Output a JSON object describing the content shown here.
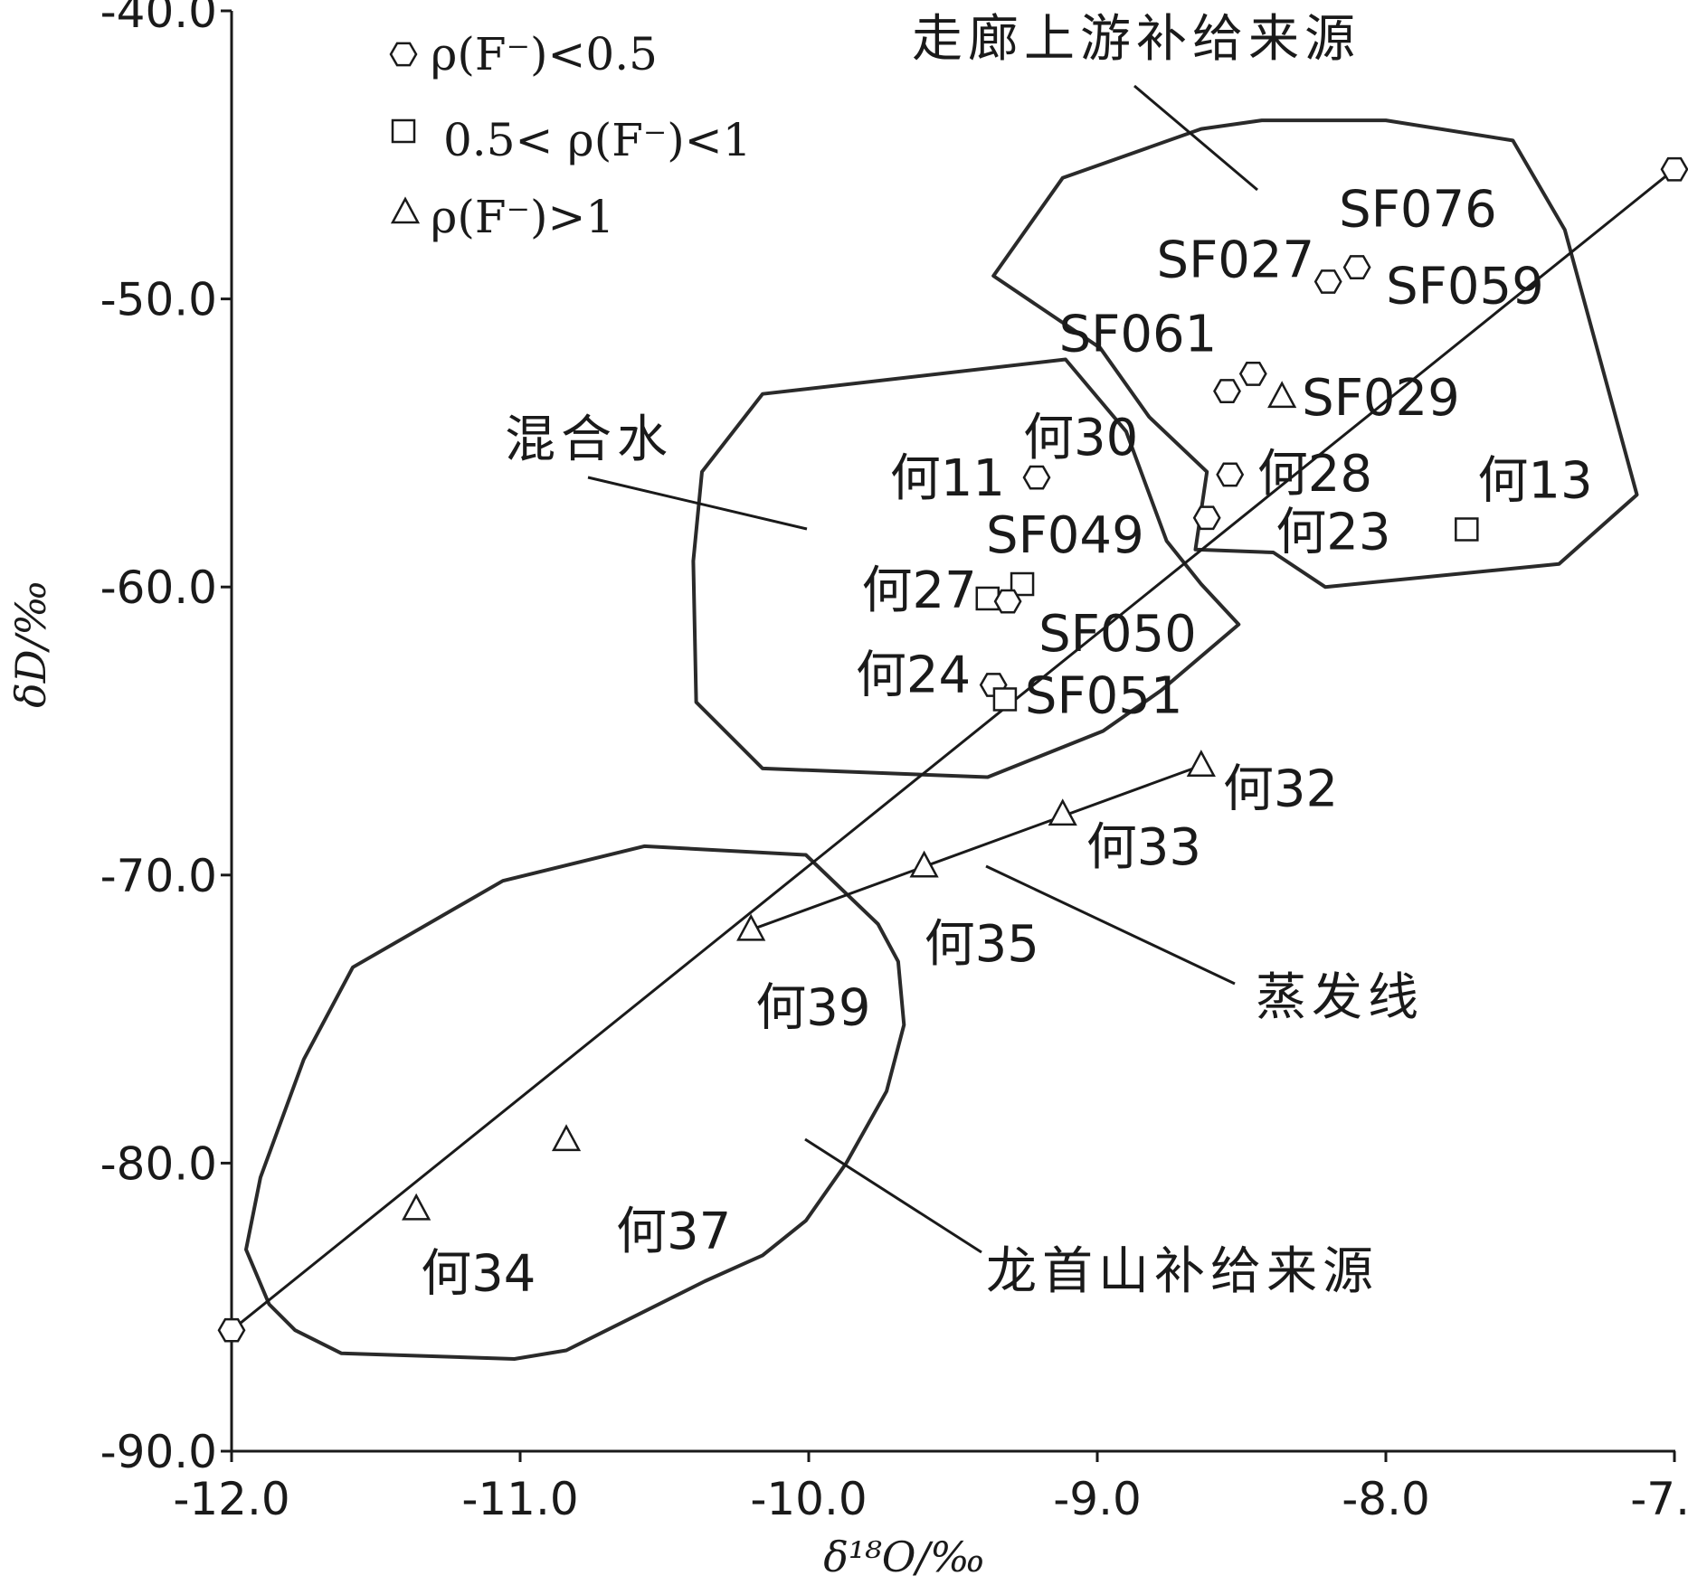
{
  "chart_data": {
    "type": "scatter",
    "title": "",
    "xlabel": "δ¹⁸O/‰",
    "ylabel": "δD/‰",
    "xlim": [
      -12.0,
      -7.0
    ],
    "ylim": [
      -90.0,
      -40.0
    ],
    "x_ticks": [
      "-12.0",
      "-11.0",
      "-10.0",
      "-9.0",
      "-8.0",
      "-7.0"
    ],
    "y_ticks": [
      "-40.0",
      "-50.0",
      "-60.0",
      "-70.0",
      "-80.0",
      "-90.0"
    ],
    "grid": false,
    "legend_position": "top-left",
    "legend": [
      {
        "marker": "hexagon",
        "label": "ρ(F⁻)<0.5"
      },
      {
        "marker": "square",
        "label": "0.5< ρ(F⁻)<1"
      },
      {
        "marker": "triangle",
        "label": "ρ(F⁻)>1"
      }
    ],
    "points": [
      {
        "x": -8.1,
        "y": -48.9,
        "marker": "hexagon",
        "label": "SF076"
      },
      {
        "x": -8.2,
        "y": -49.4,
        "marker": "hexagon",
        "label": "SF027"
      },
      {
        "x": -8.46,
        "y": -52.6,
        "marker": "hexagon",
        "label": "SF061"
      },
      {
        "x": -8.55,
        "y": -53.2,
        "marker": "hexagon",
        "label": ""
      },
      {
        "x": -8.36,
        "y": -53.4,
        "marker": "triangle",
        "label": "SF029"
      },
      {
        "x": -8.54,
        "y": -56.1,
        "marker": "hexagon",
        "label": "何28"
      },
      {
        "x": -8.62,
        "y": -57.6,
        "marker": "hexagon",
        "label": "何23"
      },
      {
        "x": -7.72,
        "y": -58.0,
        "marker": "square",
        "label": "何13"
      },
      {
        "x": -9.21,
        "y": -56.2,
        "marker": "hexagon",
        "label": "何30"
      },
      {
        "x": -9.26,
        "y": -59.9,
        "marker": "square",
        "label": "SF049"
      },
      {
        "x": -9.38,
        "y": -60.4,
        "marker": "square",
        "label": "何27"
      },
      {
        "x": -9.31,
        "y": -60.5,
        "marker": "hexagon",
        "label": "SF050"
      },
      {
        "x": -9.36,
        "y": -63.4,
        "marker": "hexagon",
        "label": "何24"
      },
      {
        "x": -9.32,
        "y": -63.9,
        "marker": "square",
        "label": "SF051"
      },
      {
        "x": -8.64,
        "y": -66.2,
        "marker": "triangle",
        "label": "何32"
      },
      {
        "x": -9.12,
        "y": -67.9,
        "marker": "triangle",
        "label": "何33"
      },
      {
        "x": -9.6,
        "y": -69.7,
        "marker": "triangle",
        "label": "何35"
      },
      {
        "x": -10.2,
        "y": -71.9,
        "marker": "triangle",
        "label": "何39"
      },
      {
        "x": -10.84,
        "y": -79.2,
        "marker": "triangle",
        "label": "何37"
      },
      {
        "x": -11.36,
        "y": -81.6,
        "marker": "triangle",
        "label": "何34"
      },
      {
        "x": -7.0,
        "y": -45.5,
        "marker": "hexagon",
        "label": ""
      },
      {
        "x": -12.0,
        "y": -85.8,
        "marker": "hexagon",
        "label": ""
      }
    ],
    "lines": [
      {
        "points": [
          [
            -12.0,
            -85.8
          ],
          [
            -7.0,
            -45.5
          ]
        ]
      },
      {
        "points": [
          [
            -10.2,
            -71.9
          ],
          [
            -8.64,
            -66.2
          ]
        ],
        "label": "蒸发线"
      }
    ],
    "regions": [
      {
        "label": "走廊上游补给来源",
        "polygon": [
          [
            -8.64,
            -44.1
          ],
          [
            -8.43,
            -43.8
          ],
          [
            -8.0,
            -43.8
          ],
          [
            -7.56,
            -44.5
          ],
          [
            -7.38,
            -47.6
          ],
          [
            -7.13,
            -56.8
          ],
          [
            -7.4,
            -59.2
          ],
          [
            -8.21,
            -60.0
          ],
          [
            -8.39,
            -58.8
          ],
          [
            -8.66,
            -58.7
          ],
          [
            -8.62,
            -56.0
          ],
          [
            -8.82,
            -54.1
          ],
          [
            -8.99,
            -51.7
          ],
          [
            -9.36,
            -49.2
          ],
          [
            -9.12,
            -45.8
          ]
        ]
      },
      {
        "label": "混合水",
        "polygon": [
          [
            -10.16,
            -53.3
          ],
          [
            -9.11,
            -52.1
          ],
          [
            -8.9,
            -54.6
          ],
          [
            -8.76,
            -58.4
          ],
          [
            -8.64,
            -59.9
          ],
          [
            -8.51,
            -61.3
          ],
          [
            -8.78,
            -63.6
          ],
          [
            -8.98,
            -65.0
          ],
          [
            -9.38,
            -66.6
          ],
          [
            -10.16,
            -66.3
          ],
          [
            -10.39,
            -64.0
          ],
          [
            -10.4,
            -59.1
          ],
          [
            -10.37,
            -56.0
          ]
        ]
      },
      {
        "label": "龙首山补给来源",
        "polygon": [
          [
            -10.57,
            -69.0
          ],
          [
            -10.01,
            -69.3
          ],
          [
            -9.76,
            -71.7
          ],
          [
            -9.69,
            -73.0
          ],
          [
            -9.67,
            -75.2
          ],
          [
            -9.73,
            -77.5
          ],
          [
            -9.87,
            -80.0
          ],
          [
            -10.01,
            -82.0
          ],
          [
            -10.16,
            -83.2
          ],
          [
            -10.36,
            -84.1
          ],
          [
            -10.6,
            -85.3
          ],
          [
            -10.84,
            -86.5
          ],
          [
            -11.02,
            -86.8
          ],
          [
            -11.62,
            -86.6
          ],
          [
            -11.78,
            -85.8
          ],
          [
            -11.87,
            -84.9
          ],
          [
            -11.95,
            -83.0
          ],
          [
            -11.9,
            -80.5
          ],
          [
            -11.75,
            -76.4
          ],
          [
            -11.58,
            -73.2
          ],
          [
            -11.06,
            -70.2
          ]
        ]
      }
    ]
  }
}
